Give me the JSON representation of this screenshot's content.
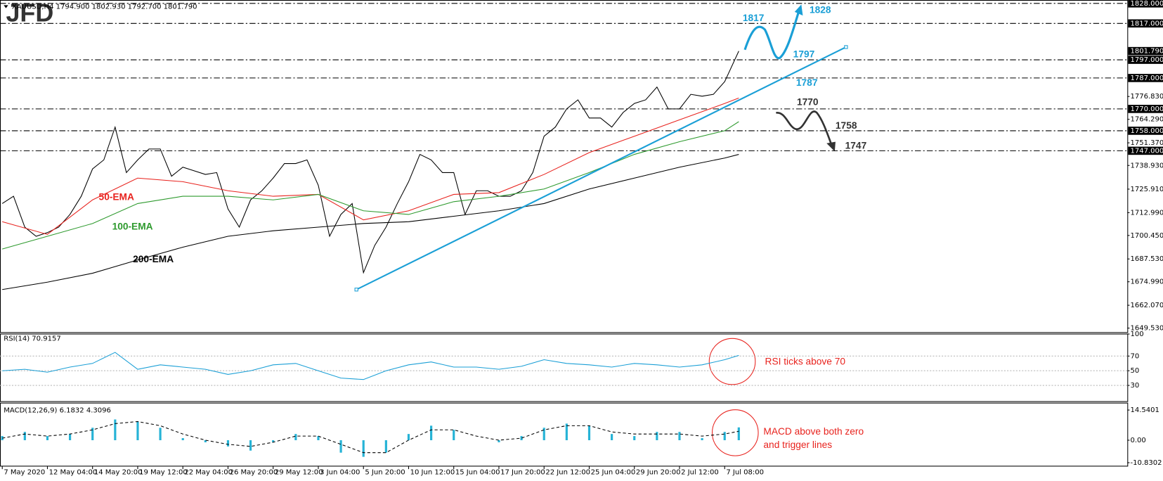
{
  "chart_data": [
    {
      "type": "line",
      "title": "XAUUSD,H4  1794.900 1802.930 1792.700 1801.790",
      "watermark": "JFD",
      "xlim": [
        -0.8,
        398.7
      ],
      "ylim": [
        1647.08,
        1829.87
      ],
      "yticks": [
        {
          "value": 1776.83,
          "label": "1776.830"
        },
        {
          "value": 1764.29,
          "label": "1764.290"
        },
        {
          "value": 1751.37,
          "label": "1751.370"
        },
        {
          "value": 1738.93,
          "label": "1738.930"
        },
        {
          "value": 1725.91,
          "label": "1725.910"
        },
        {
          "value": 1712.99,
          "label": "1712.990"
        },
        {
          "value": 1700.45,
          "label": "1700.450"
        },
        {
          "value": 1687.53,
          "label": "1687.530"
        },
        {
          "value": 1674.99,
          "label": "1674.990"
        },
        {
          "value": 1662.07,
          "label": "1662.070"
        },
        {
          "value": 1649.53,
          "label": "1649.530"
        }
      ],
      "levels": [
        {
          "value": 1828,
          "label": "1828.000"
        },
        {
          "value": 1817,
          "label": "1817.000"
        },
        {
          "value": 1797,
          "label": "1797.000"
        },
        {
          "value": 1787,
          "label": "1787.000"
        },
        {
          "value": 1770,
          "label": "1770.000"
        },
        {
          "value": 1758,
          "label": "1758.000"
        },
        {
          "value": 1747,
          "label": "1747.000"
        }
      ],
      "last": {
        "value": 1801.79,
        "label": "1801.790"
      },
      "series": [
        {
          "color": "#000000",
          "x": [
            0,
            4,
            8,
            12,
            16,
            20,
            24,
            28,
            32,
            36,
            40,
            44,
            48,
            52,
            56,
            60,
            64,
            68,
            72,
            76,
            80,
            84,
            88,
            92,
            96,
            100,
            104,
            108,
            112,
            116,
            120,
            124,
            128,
            132,
            136,
            140,
            144,
            148,
            152,
            156,
            160,
            164,
            168,
            172,
            176,
            180,
            184,
            188,
            192,
            196,
            200,
            204,
            208,
            212,
            216,
            220,
            224,
            228,
            232,
            236,
            240,
            244,
            248,
            252,
            256,
            261
          ],
          "values": [
            1718,
            1722,
            1705,
            1700,
            1702,
            1705,
            1712,
            1722,
            1737,
            1742,
            1760,
            1735,
            1742,
            1748,
            1748,
            1733,
            1738,
            1736,
            1734,
            1735,
            1715,
            1705,
            1720,
            1725,
            1732,
            1740,
            1740,
            1742,
            1728,
            1700,
            1712,
            1718,
            1680,
            1695,
            1705,
            1718,
            1730,
            1745,
            1742,
            1735,
            1735,
            1712,
            1725,
            1725,
            1722,
            1722,
            1725,
            1735,
            1755,
            1760,
            1770,
            1775,
            1765,
            1765,
            1760,
            1768,
            1773,
            1775,
            1782,
            1770,
            1770,
            1778,
            1777,
            1778,
            1785,
            1801.79
          ]
        },
        {
          "name": "50-EMA",
          "color": "#e8231e",
          "x": [
            0,
            16,
            32,
            48,
            64,
            80,
            96,
            112,
            128,
            144,
            160,
            176,
            192,
            208,
            224,
            240,
            256,
            261
          ],
          "values": [
            1708,
            1701,
            1720,
            1732,
            1730,
            1725,
            1722,
            1723,
            1709,
            1714,
            1723,
            1724,
            1734,
            1746,
            1755,
            1764,
            1773,
            1776
          ]
        },
        {
          "name": "100-EMA",
          "color": "#2e9a2e",
          "x": [
            0,
            16,
            32,
            48,
            64,
            80,
            96,
            112,
            128,
            144,
            160,
            176,
            192,
            208,
            224,
            240,
            256,
            261
          ],
          "values": [
            1693,
            1700,
            1707,
            1718,
            1722,
            1722,
            1720,
            1723,
            1714,
            1712,
            1719,
            1722,
            1726,
            1735,
            1745,
            1752,
            1758,
            1763
          ]
        },
        {
          "name": "200-EMA",
          "color": "#000000",
          "x": [
            0,
            16,
            32,
            48,
            64,
            80,
            96,
            112,
            128,
            144,
            160,
            176,
            192,
            208,
            224,
            240,
            256,
            261
          ],
          "values": [
            1670.7,
            1674.8,
            1679.7,
            1687,
            1694,
            1700,
            1703,
            1705,
            1707,
            1708,
            1711,
            1714,
            1718,
            1726,
            1732,
            1738,
            1743,
            1745
          ]
        }
      ],
      "trendline": {
        "color": "#1a9fd6",
        "x": [
          125.5,
          299
        ],
        "values": [
          1670.7,
          1804
        ]
      },
      "annotations": [
        "1817",
        "1828",
        "1797",
        "1787",
        "1770",
        "1758",
        "1747"
      ]
    },
    {
      "type": "line",
      "title": "RSI(14) 70.9157",
      "xlim": [
        -0.8,
        398.7
      ],
      "ylim": [
        8,
        100
      ],
      "yticks": [
        100,
        70,
        50,
        30
      ],
      "levels": [
        70,
        50,
        30
      ],
      "series": [
        {
          "color": "#1a9fd6",
          "x": [
            0,
            8,
            16,
            24,
            32,
            40,
            48,
            56,
            64,
            72,
            80,
            88,
            96,
            104,
            112,
            120,
            128,
            136,
            144,
            152,
            160,
            168,
            176,
            184,
            192,
            200,
            208,
            216,
            224,
            232,
            240,
            248,
            256,
            261
          ],
          "values": [
            50,
            52,
            48,
            55,
            60,
            75,
            52,
            58,
            55,
            52,
            45,
            50,
            58,
            60,
            50,
            40,
            38,
            50,
            58,
            62,
            55,
            55,
            52,
            56,
            65,
            60,
            58,
            55,
            60,
            58,
            55,
            58,
            65,
            70.9157
          ]
        }
      ],
      "annotation": "RSI ticks above 70"
    },
    {
      "type": "macd",
      "title": "MACD(12,26,9) 6.1832 4.3096",
      "xlim": [
        -0.8,
        398.7
      ],
      "ylim": [
        -12.5,
        17.9
      ],
      "yticks": [
        14.5401,
        {
          "value": 0,
          "label": "0.00"
        },
        -10.8302
      ],
      "xticks": [
        {
          "value": 0,
          "label": "7 May 2020"
        },
        {
          "value": 16,
          "label": "12 May 04:00"
        },
        {
          "value": 32,
          "label": "14 May 20:00"
        },
        {
          "value": 48,
          "label": "19 May 12:00"
        },
        {
          "value": 64,
          "label": "22 May 04:00"
        },
        {
          "value": 80,
          "label": "26 May 20:00"
        },
        {
          "value": 96,
          "label": "29 May 12:00"
        },
        {
          "value": 112,
          "label": "3 Jun 04:00"
        },
        {
          "value": 128,
          "label": "5 Jun 20:00"
        },
        {
          "value": 144,
          "label": "10 Jun 12:00"
        },
        {
          "value": 160,
          "label": "15 Jun 04:00"
        },
        {
          "value": 176,
          "label": "17 Jun 20:00"
        },
        {
          "value": 192,
          "label": "22 Jun 12:00"
        },
        {
          "value": 208,
          "label": "25 Jun 04:00"
        },
        {
          "value": 224,
          "label": "29 Jun 20:00"
        },
        {
          "value": 240,
          "label": "2 Jul 12:00"
        },
        {
          "value": 256,
          "label": "7 Jul 08:00"
        }
      ],
      "series": [
        {
          "color": "#26b3d6",
          "x": [
            0,
            8,
            16,
            24,
            32,
            40,
            48,
            56,
            64,
            72,
            80,
            88,
            96,
            104,
            112,
            120,
            128,
            136,
            144,
            152,
            160,
            168,
            176,
            184,
            192,
            200,
            208,
            216,
            224,
            232,
            240,
            248,
            256,
            261
          ],
          "values": [
            2,
            4,
            2,
            3,
            6,
            10,
            9,
            6,
            1,
            -1,
            -3,
            -5,
            -1,
            3,
            2,
            -6,
            -8,
            -6,
            3,
            7,
            5,
            0,
            -1,
            2,
            6,
            8,
            7,
            3,
            2,
            4,
            4,
            1,
            4,
            6.1832
          ]
        },
        {
          "color": "#000000",
          "dash": true,
          "x": [
            0,
            8,
            16,
            24,
            32,
            40,
            48,
            56,
            64,
            72,
            80,
            88,
            96,
            104,
            112,
            120,
            128,
            136,
            144,
            152,
            160,
            168,
            176,
            184,
            192,
            200,
            208,
            216,
            224,
            232,
            240,
            248,
            256,
            261
          ],
          "values": [
            1,
            3,
            2,
            3,
            5,
            8,
            9,
            7,
            3,
            0,
            -2,
            -3,
            -1,
            2,
            2,
            -2,
            -6,
            -6,
            0,
            5,
            5,
            2,
            0,
            1,
            5,
            7,
            7,
            4,
            3,
            3,
            3,
            2,
            3,
            4.3096
          ]
        }
      ],
      "annotation": [
        "MACD above both zero",
        "and trigger lines"
      ]
    }
  ]
}
